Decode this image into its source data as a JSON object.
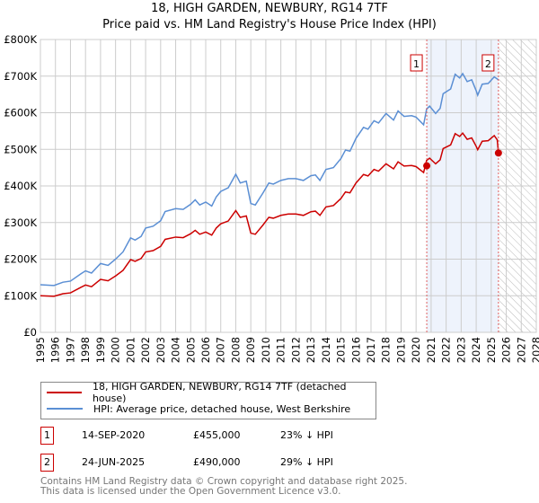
{
  "title_line1": "18, HIGH GARDEN, NEWBURY, RG14 7TF",
  "title_line2": "Price paid vs. HM Land Registry's House Price Index (HPI)",
  "chart_data": {
    "type": "line",
    "title": "18, HIGH GARDEN, NEWBURY, RG14 7TF — Price paid vs. HM Land Registry's House Price Index (HPI)",
    "xlim": [
      1995,
      2028
    ],
    "ylim": [
      0,
      800000
    ],
    "yticks": [
      {
        "v": 0,
        "label": "£0"
      },
      {
        "v": 100000,
        "label": "£100K"
      },
      {
        "v": 200000,
        "label": "£200K"
      },
      {
        "v": 300000,
        "label": "£300K"
      },
      {
        "v": 400000,
        "label": "£400K"
      },
      {
        "v": 500000,
        "label": "£500K"
      },
      {
        "v": 600000,
        "label": "£600K"
      },
      {
        "v": 700000,
        "label": "£700K"
      },
      {
        "v": 800000,
        "label": "£800K"
      }
    ],
    "xticks": [
      "1995",
      "1996",
      "1997",
      "1998",
      "1999",
      "2000",
      "2001",
      "2002",
      "2003",
      "2004",
      "2005",
      "2006",
      "2007",
      "2008",
      "2009",
      "2010",
      "2011",
      "2012",
      "2013",
      "2014",
      "2015",
      "2016",
      "2017",
      "2018",
      "2019",
      "2020",
      "2021",
      "2022",
      "2023",
      "2024",
      "2025",
      "2026",
      "2027",
      "2028"
    ],
    "grid": true,
    "colors": {
      "property": "#cc0000",
      "hpi": "#5b8fd4",
      "shade": "#eef3fc",
      "marker_line": "#e06060"
    },
    "hpi": {
      "name": "HPI: Average price, detached house, West Berkshire",
      "x": [
        1995,
        1995.9,
        1996.5,
        1997,
        1997.7,
        1998,
        1998.4,
        1999,
        1999.5,
        2000,
        2000.5,
        2001,
        2001.3,
        2001.7,
        2002,
        2002.5,
        2003,
        2003.3,
        2004,
        2004.5,
        2005,
        2005.3,
        2005.6,
        2006,
        2006.4,
        2006.7,
        2007,
        2007.5,
        2008,
        2008.3,
        2008.7,
        2009,
        2009.3,
        2009.8,
        2010.2,
        2010.5,
        2011,
        2011.5,
        2012,
        2012.5,
        2013,
        2013.3,
        2013.6,
        2014,
        2014.5,
        2015,
        2015.3,
        2015.6,
        2016,
        2016.5,
        2016.8,
        2017.2,
        2017.5,
        2018,
        2018.5,
        2018.8,
        2019.2,
        2019.7,
        2020,
        2020.5,
        2020.7,
        2020.9,
        2021.3,
        2021.6,
        2021.8,
        2022.3,
        2022.6,
        2022.9,
        2023.1,
        2023.4,
        2023.7,
        2024,
        2024.1,
        2024.4,
        2024.8,
        2025.2,
        2025.48
      ],
      "y": [
        130,
        128,
        137,
        140,
        160,
        168,
        162,
        188,
        183,
        200,
        220,
        258,
        252,
        262,
        285,
        290,
        305,
        330,
        338,
        336,
        350,
        362,
        348,
        356,
        345,
        370,
        385,
        395,
        432,
        408,
        413,
        352,
        348,
        380,
        408,
        405,
        415,
        420,
        420,
        415,
        428,
        430,
        415,
        445,
        450,
        475,
        498,
        495,
        530,
        560,
        555,
        578,
        572,
        598,
        580,
        605,
        590,
        592,
        588,
        567,
        610,
        618,
        598,
        612,
        652,
        665,
        705,
        695,
        707,
        685,
        690,
        660,
        648,
        678,
        680,
        698,
        690
      ],
      "unit": "£K"
    },
    "property": {
      "name": "18, HIGH GARDEN, NEWBURY, RG14 7TF (detached house)",
      "ratio_to_hpi": 0.77,
      "final": {
        "x": 2025.48,
        "y": 490
      }
    },
    "sales": [
      {
        "n": "1",
        "x": 2020.71,
        "y": 455000
      },
      {
        "n": "2",
        "x": 2025.48,
        "y": 490000
      }
    ],
    "forecast_hatched_from": 2025.48
  },
  "legend": {
    "property": "18, HIGH GARDEN, NEWBURY, RG14 7TF (detached house)",
    "hpi": "HPI: Average price, detached house, West Berkshire"
  },
  "sales": [
    {
      "num": "1",
      "date": "14-SEP-2020",
      "price": "£455,000",
      "delta": "23% ↓ HPI"
    },
    {
      "num": "2",
      "date": "24-JUN-2025",
      "price": "£490,000",
      "delta": "29% ↓ HPI"
    }
  ],
  "footer": {
    "line1": "Contains HM Land Registry data © Crown copyright and database right 2025.",
    "line2": "This data is licensed under the Open Government Licence v3.0."
  }
}
